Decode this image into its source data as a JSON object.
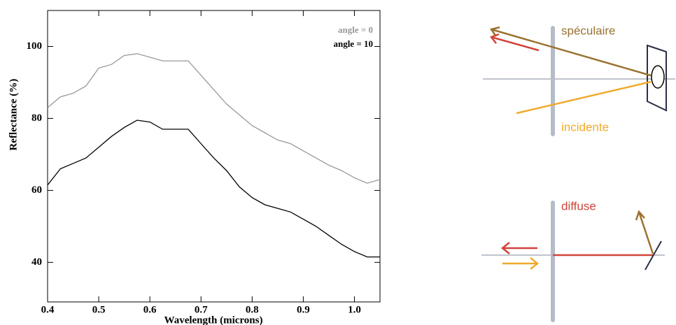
{
  "chart_data": {
    "type": "line",
    "x_label": "Wavelength (microns)",
    "y_label": "Reflectance (%)",
    "x": [
      0.4,
      0.425,
      0.45,
      0.475,
      0.5,
      0.525,
      0.55,
      0.575,
      0.6,
      0.625,
      0.65,
      0.675,
      0.7,
      0.725,
      0.75,
      0.775,
      0.8,
      0.825,
      0.85,
      0.875,
      0.9,
      0.925,
      0.95,
      0.975,
      1.0,
      1.025,
      1.05
    ],
    "series": [
      {
        "name": "angle = 0",
        "color": "#999999",
        "values": [
          83,
          86,
          87,
          89,
          94,
          95,
          97.5,
          98,
          97,
          96,
          96,
          96,
          92,
          88,
          84,
          81,
          78,
          76,
          74,
          73,
          71,
          69,
          67,
          65.5,
          63.5,
          62,
          63
        ]
      },
      {
        "name": "angle = 10",
        "color": "#000000",
        "values": [
          61.5,
          66,
          67.5,
          69,
          72,
          75,
          77.5,
          79.5,
          79,
          77,
          77,
          77,
          73,
          69,
          65.5,
          61,
          58,
          56,
          55,
          54,
          52,
          50,
          47.5,
          45,
          43,
          41.5,
          41.5
        ]
      }
    ],
    "xlim": [
      0.4,
      1.05
    ],
    "ylim": [
      29,
      110
    ],
    "xticks": [
      0.4,
      0.5,
      0.6,
      0.7,
      0.8,
      0.9,
      {
        "value": 1,
        "label": "1.0"
      }
    ],
    "yticks": [
      40,
      60,
      80,
      100
    ],
    "legend": "upper right"
  },
  "diagram": {
    "labels": [
      "spéculaire",
      "incidente",
      "diffuse"
    ]
  }
}
